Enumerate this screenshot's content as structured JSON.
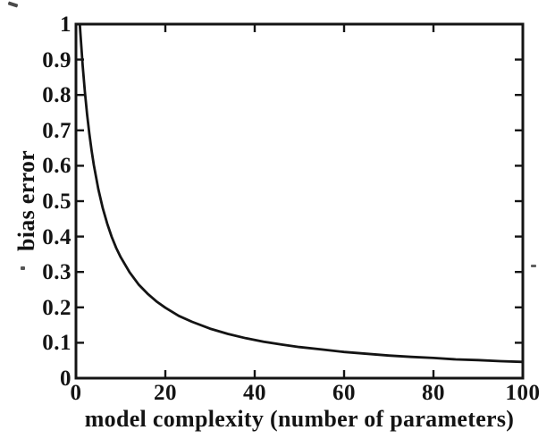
{
  "figure": {
    "background": "#ffffff",
    "ink_color": "#141414"
  },
  "chart_data": {
    "type": "line",
    "title": "",
    "xlabel": "model complexity (number of parameters)",
    "ylabel": "bias error",
    "xlim": [
      0,
      100
    ],
    "ylim": [
      0,
      1
    ],
    "grid": false,
    "legend": "none",
    "box": true,
    "xticks": [
      0,
      20,
      40,
      60,
      80,
      100
    ],
    "xtick_labels": [
      "0",
      "20",
      "40",
      "60",
      "80",
      "100"
    ],
    "yticks": [
      0,
      0.1,
      0.2,
      0.3,
      0.4,
      0.5,
      0.6,
      0.7,
      0.8,
      0.9,
      1
    ],
    "ytick_labels": [
      "0",
      "0.1",
      "0.2",
      "0.3",
      "0.4",
      "0.5",
      "0.6",
      "0.7",
      "0.8",
      "0.9",
      "1"
    ],
    "series": [
      {
        "name": "bias-error-curve",
        "color": "#141414",
        "x": [
          0,
          0.87,
          1,
          1.5,
          2,
          2.5,
          3,
          3.5,
          4,
          5,
          6,
          7,
          8,
          9,
          10,
          12,
          14,
          16,
          18,
          20,
          23,
          26,
          30,
          34,
          38,
          42,
          46,
          50,
          55,
          60,
          65,
          70,
          75,
          80,
          85,
          90,
          95,
          100
        ],
        "y": [
          1.0,
          1.0,
          0.973,
          0.883,
          0.808,
          0.744,
          0.69,
          0.643,
          0.602,
          0.534,
          0.48,
          0.436,
          0.399,
          0.368,
          0.342,
          0.299,
          0.265,
          0.239,
          0.217,
          0.199,
          0.176,
          0.159,
          0.14,
          0.125,
          0.113,
          0.103,
          0.095,
          0.088,
          0.081,
          0.074,
          0.069,
          0.064,
          0.06,
          0.057,
          0.053,
          0.051,
          0.048,
          0.046
        ]
      }
    ]
  }
}
